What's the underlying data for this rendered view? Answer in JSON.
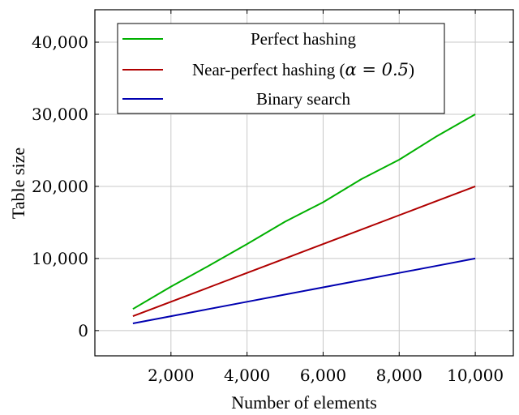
{
  "chart_data": {
    "type": "line",
    "title": "",
    "xlabel": "Number of elements",
    "ylabel": "Table size",
    "xlim": [
      0,
      11000
    ],
    "ylim": [
      -3500,
      44500
    ],
    "x_ticks": [
      2000,
      4000,
      6000,
      8000,
      10000
    ],
    "x_tick_labels": [
      "2,000",
      "4,000",
      "6,000",
      "8,000",
      "10,000"
    ],
    "y_ticks": [
      0,
      10000,
      20000,
      30000,
      40000
    ],
    "y_tick_labels": [
      "0",
      "10,000",
      "20,000",
      "30,000",
      "40,000"
    ],
    "grid": true,
    "legend_position": "top-left",
    "x": [
      1000,
      2000,
      3000,
      4000,
      5000,
      6000,
      7000,
      8000,
      9000,
      10000
    ],
    "series": [
      {
        "name": "Perfect hashing",
        "color": "#00b000",
        "values": [
          3000,
          6100,
          9000,
          12000,
          15100,
          17800,
          21000,
          23700,
          27000,
          30000
        ]
      },
      {
        "name": "Near-perfect hashing (α = 0.5)",
        "name_prefix": "Near-perfect hashing (",
        "name_math": "α = 0.5",
        "name_suffix": ")",
        "color": "#b00000",
        "values": [
          2000,
          4000,
          6000,
          8000,
          10000,
          12000,
          14000,
          16000,
          18000,
          20000
        ]
      },
      {
        "name": "Binary search",
        "color": "#0000b0",
        "values": [
          1000,
          2000,
          3000,
          4000,
          5000,
          6000,
          7000,
          8000,
          9000,
          10000
        ]
      }
    ]
  }
}
